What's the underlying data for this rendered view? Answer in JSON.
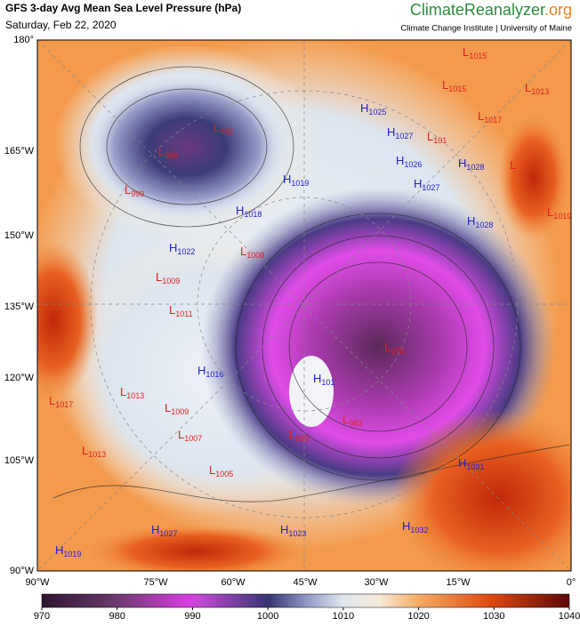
{
  "header": {
    "title": "GFS 3-day Avg Mean Sea Level Pressure (hPa)",
    "subtitle": "Saturday, Feb 22, 2020",
    "brand_main": "ClimateReanalyzer",
    "brand_suffix": ".org",
    "brand_sub": "Climate Change Institute | University of Maine"
  },
  "axes": {
    "left": [
      "180°",
      "165°W",
      "150°W",
      "135°W",
      "120°W",
      "105°W",
      "90°W"
    ],
    "bottom": [
      "90°W",
      "75°W",
      "60°W",
      "45°W",
      "30°W",
      "15°W",
      "0°"
    ]
  },
  "centers": [
    {
      "letter": "H",
      "value": "1025"
    },
    {
      "letter": "H",
      "value": "1027"
    },
    {
      "letter": "L",
      "value": "101"
    },
    {
      "letter": "H",
      "value": "1026"
    },
    {
      "letter": "H",
      "value": "1028"
    },
    {
      "letter": "L",
      "value": ""
    },
    {
      "letter": "H",
      "value": "1027"
    },
    {
      "letter": "H",
      "value": "1028"
    },
    {
      "letter": "L",
      "value": "1015"
    },
    {
      "letter": "L",
      "value": "1015"
    },
    {
      "letter": "L",
      "value": "1013"
    },
    {
      "letter": "L",
      "value": "1017"
    },
    {
      "letter": "L",
      "value": "1019"
    },
    {
      "letter": "H",
      "value": "1019"
    },
    {
      "letter": "H",
      "value": "1018"
    },
    {
      "letter": "L",
      "value": "1008"
    },
    {
      "letter": "H",
      "value": "1022"
    },
    {
      "letter": "L",
      "value": "1009"
    },
    {
      "letter": "L",
      "value": "1011"
    },
    {
      "letter": "L",
      "value": "992"
    },
    {
      "letter": "L",
      "value": "996"
    },
    {
      "letter": "L",
      "value": "999"
    },
    {
      "letter": "H",
      "value": "1016"
    },
    {
      "letter": "L",
      "value": "1013"
    },
    {
      "letter": "L",
      "value": "1017"
    },
    {
      "letter": "L",
      "value": "1009"
    },
    {
      "letter": "L",
      "value": "1007"
    },
    {
      "letter": "L",
      "value": "1013"
    },
    {
      "letter": "L",
      "value": "1005"
    },
    {
      "letter": "H",
      "value": "101"
    },
    {
      "letter": "L",
      "value": "975"
    },
    {
      "letter": "L",
      "value": "983"
    },
    {
      "letter": "L",
      "value": "990"
    },
    {
      "letter": "H",
      "value": "1031"
    },
    {
      "letter": "H",
      "value": "1027"
    },
    {
      "letter": "H",
      "value": "1023"
    },
    {
      "letter": "H",
      "value": "1032"
    },
    {
      "letter": "H",
      "value": "1019"
    }
  ],
  "colorbar": {
    "ticks": [
      970,
      980,
      990,
      1000,
      1010,
      1020,
      1030,
      1040
    ]
  }
}
